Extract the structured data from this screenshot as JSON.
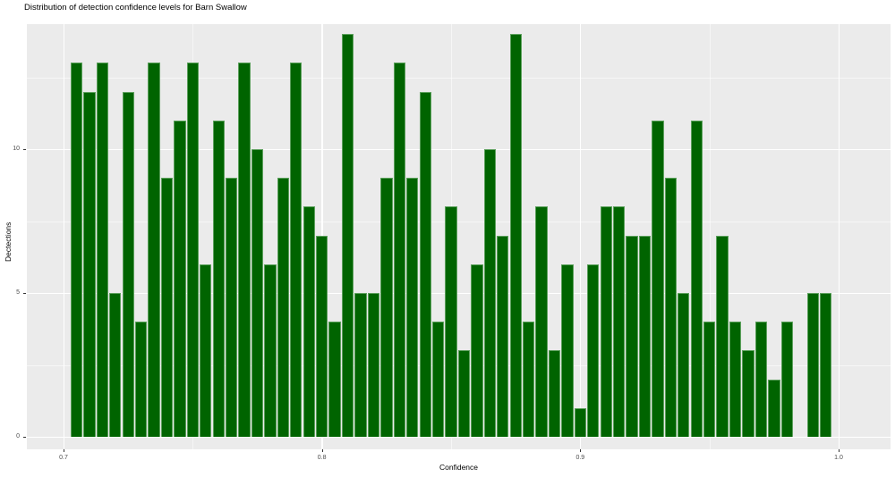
{
  "figure": {
    "title": "Distribution of detection confidence levels for Barn Swallow"
  },
  "chart_data": {
    "type": "bar",
    "subtype": "histogram",
    "title": "Distribution of detection confidence levels for Barn Swallow",
    "xlabel": "Confidence",
    "ylabel": "Dectections",
    "bin_width": 0.005,
    "bin_centers": [
      0.705,
      0.71,
      0.715,
      0.72,
      0.725,
      0.73,
      0.735,
      0.74,
      0.745,
      0.75,
      0.755,
      0.76,
      0.765,
      0.77,
      0.775,
      0.78,
      0.785,
      0.79,
      0.795,
      0.8,
      0.805,
      0.81,
      0.815,
      0.82,
      0.825,
      0.83,
      0.835,
      0.84,
      0.845,
      0.85,
      0.855,
      0.86,
      0.865,
      0.87,
      0.875,
      0.88,
      0.885,
      0.89,
      0.895,
      0.9,
      0.905,
      0.91,
      0.915,
      0.92,
      0.925,
      0.93,
      0.935,
      0.94,
      0.945,
      0.95,
      0.955,
      0.96,
      0.965,
      0.97,
      0.975,
      0.98,
      0.985,
      0.99,
      0.995
    ],
    "values": [
      13,
      12,
      13,
      5,
      12,
      4,
      13,
      9,
      11,
      13,
      6,
      11,
      9,
      13,
      10,
      6,
      9,
      13,
      8,
      7,
      4,
      14,
      5,
      5,
      9,
      13,
      9,
      12,
      4,
      8,
      3,
      6,
      10,
      7,
      14,
      4,
      8,
      3,
      6,
      1,
      6,
      8,
      8,
      7,
      7,
      11,
      9,
      5,
      11,
      4,
      7,
      4,
      3,
      4,
      2,
      4,
      0,
      5,
      5
    ],
    "x_ticks": [
      0.7,
      0.8,
      0.9,
      1.0
    ],
    "x_tick_labels": [
      "0.7",
      "0.8",
      "0.9",
      "1.0"
    ],
    "x_minor_ticks": [
      0.75,
      0.85,
      0.95
    ],
    "y_ticks": [
      0,
      5,
      10
    ],
    "y_tick_labels": [
      "0",
      "5",
      "10"
    ],
    "y_minor_ticks": [
      2.5,
      7.5,
      12.5
    ],
    "xlim": [
      0.6858,
      1.0201
    ],
    "ylim": [
      -0.43,
      14.35
    ],
    "grid": "on",
    "legend": "none",
    "colors": {
      "bar_fill": "#006400",
      "bar_border": "#5ca05c",
      "panel_bg": "#ebebeb",
      "grid": "#ffffff",
      "tick_text": "#4d4d4d",
      "title_text": "#000000"
    }
  }
}
